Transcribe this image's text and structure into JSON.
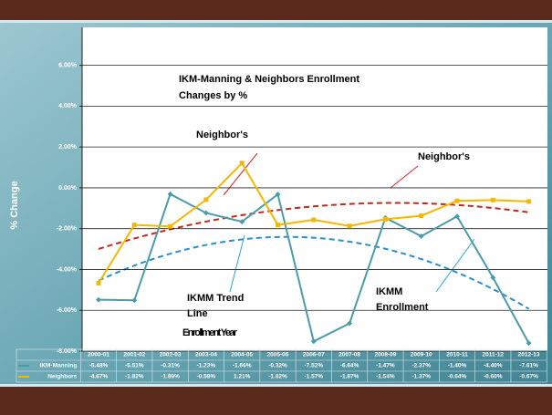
{
  "chart_data": {
    "type": "line",
    "title": "IKM-Manning & Neighbors Enrollment",
    "subtitle": "Changes  by %",
    "ylabel": "% Change",
    "xlabel": "Enrollment Year",
    "categories": [
      "2000-01",
      "2001-02",
      "2002-03",
      "2003-04",
      "2004-05",
      "2005-06",
      "2006-07",
      "2007-08",
      "2008-09",
      "2009-10",
      "2010-11",
      "2011-12",
      "2012-13"
    ],
    "series": [
      {
        "name": "IKM-Manning",
        "color": "#4a9ca8",
        "values": [
          -5.48,
          -5.51,
          -0.31,
          -1.23,
          -1.66,
          -0.32,
          -7.52,
          -6.64,
          -1.47,
          -2.37,
          -1.4,
          -4.4,
          -7.61
        ],
        "value_labels": [
          "-5.48%",
          "-5.51%",
          "-0.31%",
          "-1.23%",
          "-1.66%",
          "-0.32%",
          "-7.52%",
          "-6.64%",
          "-1.47%",
          "-2.37%",
          "-1.40%",
          "-4.40%",
          "-7.61%"
        ]
      },
      {
        "name": "Neighbors",
        "color": "#f5b800",
        "values": [
          -4.67,
          -1.82,
          -1.89,
          -0.58,
          1.21,
          -1.82,
          -1.57,
          -1.87,
          -1.54,
          -1.37,
          -0.64,
          -0.6,
          -0.67
        ],
        "value_labels": [
          "-4.67%",
          "-1.82%",
          "-1.89%",
          "-0.58%",
          "1.21%",
          "-1.82%",
          "-1.57%",
          "-1.87%",
          "-1.54%",
          "-1.37%",
          "-0.64%",
          "-0.60%",
          "-0.67%"
        ]
      }
    ],
    "ylim": [
      -8,
      6
    ],
    "yticks": [
      {
        "value": -8,
        "label": "-8.00%"
      },
      {
        "value": -6,
        "label": "-6.00%"
      },
      {
        "value": -4,
        "label": "-4.00%"
      },
      {
        "value": -2,
        "label": "-2.00%"
      },
      {
        "value": 0,
        "label": "0.00%"
      },
      {
        "value": 2,
        "label": "2.00%"
      },
      {
        "value": 4,
        "label": "4.00%"
      },
      {
        "value": 6,
        "label": "6.00%"
      }
    ],
    "grid": true,
    "annotations": [
      "Neighbor's",
      "Neighbor's",
      "IKMM Trend",
      "Line",
      "IKMM",
      "Enrollment"
    ]
  }
}
